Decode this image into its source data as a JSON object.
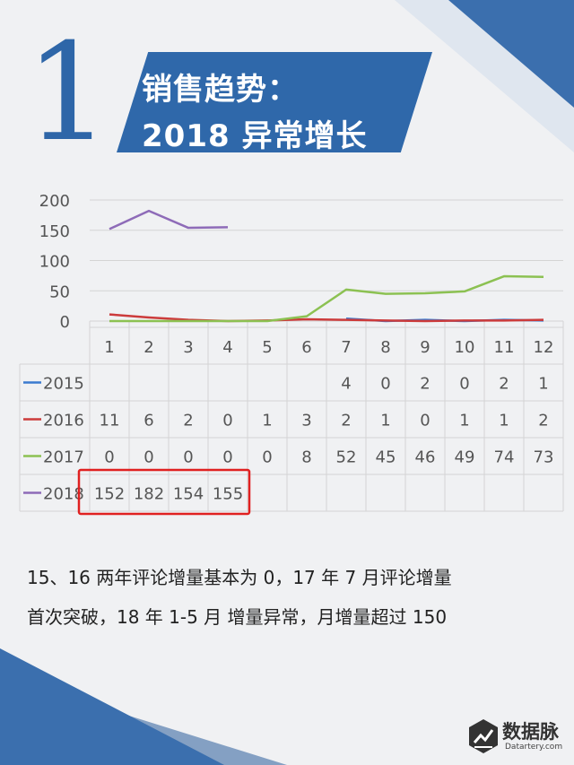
{
  "section_number": "1",
  "title_line1": "销售趋势：",
  "title_line2": "2018 异常增长",
  "chart_data": {
    "type": "line",
    "categories": [
      "1",
      "2",
      "3",
      "4",
      "5",
      "6",
      "7",
      "8",
      "9",
      "10",
      "11",
      "12"
    ],
    "yticks": [
      0,
      50,
      100,
      150,
      200
    ],
    "ylim": [
      0,
      200
    ],
    "grid": true,
    "legend": "table-left",
    "series": [
      {
        "name": "2015",
        "color": "#3b7bd0",
        "values": [
          null,
          null,
          null,
          null,
          null,
          null,
          4,
          0,
          2,
          0,
          2,
          1
        ]
      },
      {
        "name": "2016",
        "color": "#cc3b3b",
        "values": [
          11,
          6,
          2,
          0,
          1,
          3,
          2,
          1,
          0,
          1,
          1,
          2
        ]
      },
      {
        "name": "2017",
        "color": "#8cc152",
        "values": [
          0,
          0,
          0,
          0,
          0,
          8,
          52,
          45,
          46,
          49,
          74,
          73
        ]
      },
      {
        "name": "2018",
        "color": "#8e6bb8",
        "values": [
          152,
          182,
          154,
          155,
          null,
          null,
          null,
          null,
          null,
          null,
          null,
          null
        ]
      }
    ],
    "highlight": {
      "series": "2018",
      "from": 1,
      "to": 4,
      "color": "#e02020"
    }
  },
  "caption_line1": "15、16 两年评论增量基本为 0，17 年 7 月评论增量",
  "caption_line2": "首次突破，18 年 1-5 月 增量异常，月增量超过 150",
  "logo": {
    "name": "数据脉",
    "sub": "Datartery.com"
  }
}
